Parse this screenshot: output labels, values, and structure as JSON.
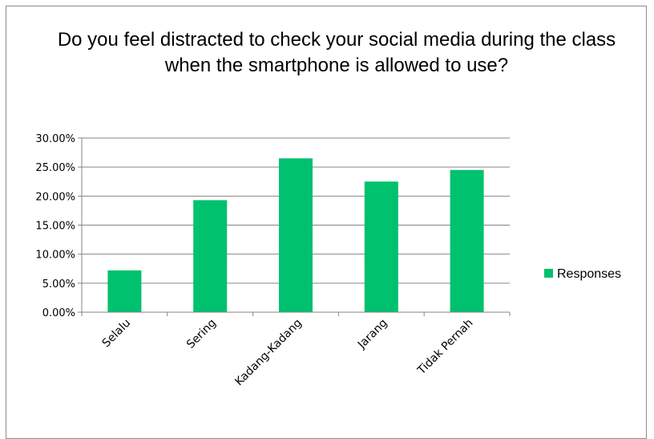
{
  "chart_data": {
    "type": "bar",
    "title": "Do you feel distracted to check your social media during the class when the smartphone is allowed to use?",
    "categories": [
      "Selalu",
      "Sering",
      "Kadang-Kadang",
      "Jarang",
      "Tidak Pernah"
    ],
    "series": [
      {
        "name": "Responses",
        "values": [
          7.2,
          19.3,
          26.5,
          22.5,
          24.5
        ],
        "color": "#00c16e"
      }
    ],
    "y_ticks": [
      "30.00%",
      "25.00%",
      "20.00%",
      "15.00%",
      "10.00%",
      "5.00%",
      "0.00%"
    ],
    "ylim": [
      0,
      30
    ],
    "grid": true,
    "legend_position": "right"
  }
}
